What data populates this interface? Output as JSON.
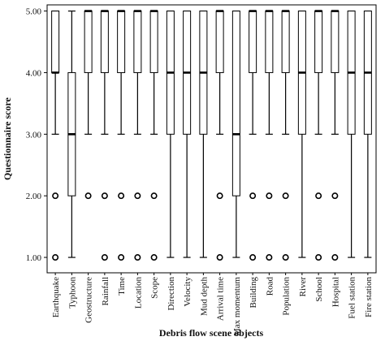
{
  "chart_data": {
    "type": "boxplot",
    "title": "",
    "xlabel": "Debris flow scene objects",
    "ylabel": "Questionnaire score",
    "ylim": [
      0.75,
      5.1
    ],
    "yticks": [
      "1.00",
      "2.00",
      "3.00",
      "4.00",
      "5.00"
    ],
    "ytick_values": [
      1,
      2,
      3,
      4,
      5
    ],
    "grid": false,
    "colors": {
      "box_fill": "#ffffff",
      "stroke": "#000000",
      "plot_bg": "#ffffff"
    },
    "categories": [
      "Earthquake",
      "Typhoon",
      "Geostructure",
      "Rainfall",
      "Time",
      "Location",
      "Scope",
      "Direction",
      "Velocity",
      "Mud depth",
      "Arrival time",
      "Max momentum",
      "Building",
      "Road",
      "Population",
      "River",
      "School",
      "Hospital",
      "Fuel station",
      "Fire station"
    ],
    "boxes": [
      {
        "category": "Earthquake",
        "whisker_low": 3,
        "q1": 4,
        "median": 4,
        "q3": 5,
        "whisker_high": 5,
        "outliers": [
          2,
          1
        ]
      },
      {
        "category": "Typhoon",
        "whisker_low": 1,
        "q1": 2,
        "median": 3,
        "q3": 4,
        "whisker_high": 5,
        "outliers": []
      },
      {
        "category": "Geostructure",
        "whisker_low": 3,
        "q1": 4,
        "median": 5,
        "q3": 5,
        "whisker_high": 5,
        "outliers": [
          2
        ]
      },
      {
        "category": "Rainfall",
        "whisker_low": 3,
        "q1": 4,
        "median": 5,
        "q3": 5,
        "whisker_high": 5,
        "outliers": [
          2,
          1
        ]
      },
      {
        "category": "Time",
        "whisker_low": 3,
        "q1": 4,
        "median": 5,
        "q3": 5,
        "whisker_high": 5,
        "outliers": [
          2,
          1
        ]
      },
      {
        "category": "Location",
        "whisker_low": 3,
        "q1": 4,
        "median": 5,
        "q3": 5,
        "whisker_high": 5,
        "outliers": [
          2,
          1
        ]
      },
      {
        "category": "Scope",
        "whisker_low": 3,
        "q1": 4,
        "median": 5,
        "q3": 5,
        "whisker_high": 5,
        "outliers": [
          2,
          1
        ]
      },
      {
        "category": "Direction",
        "whisker_low": 1,
        "q1": 3,
        "median": 4,
        "q3": 5,
        "whisker_high": 5,
        "outliers": []
      },
      {
        "category": "Velocity",
        "whisker_low": 1,
        "q1": 3,
        "median": 4,
        "q3": 5,
        "whisker_high": 5,
        "outliers": []
      },
      {
        "category": "Mud depth",
        "whisker_low": 1,
        "q1": 3,
        "median": 4,
        "q3": 5,
        "whisker_high": 5,
        "outliers": []
      },
      {
        "category": "Arrival time",
        "whisker_low": 3,
        "q1": 4,
        "median": 5,
        "q3": 5,
        "whisker_high": 5,
        "outliers": [
          2,
          1
        ]
      },
      {
        "category": "Max momentum",
        "whisker_low": 1,
        "q1": 2,
        "median": 3,
        "q3": 5,
        "whisker_high": 5,
        "outliers": []
      },
      {
        "category": "Building",
        "whisker_low": 3,
        "q1": 4,
        "median": 5,
        "q3": 5,
        "whisker_high": 5,
        "outliers": [
          2,
          1
        ]
      },
      {
        "category": "Road",
        "whisker_low": 3,
        "q1": 4,
        "median": 5,
        "q3": 5,
        "whisker_high": 5,
        "outliers": [
          2,
          1
        ]
      },
      {
        "category": "Population",
        "whisker_low": 3,
        "q1": 4,
        "median": 5,
        "q3": 5,
        "whisker_high": 5,
        "outliers": [
          2,
          1
        ]
      },
      {
        "category": "River",
        "whisker_low": 1,
        "q1": 3,
        "median": 4,
        "q3": 5,
        "whisker_high": 5,
        "outliers": []
      },
      {
        "category": "School",
        "whisker_low": 3,
        "q1": 4,
        "median": 5,
        "q3": 5,
        "whisker_high": 5,
        "outliers": [
          2,
          1
        ]
      },
      {
        "category": "Hospital",
        "whisker_low": 3,
        "q1": 4,
        "median": 5,
        "q3": 5,
        "whisker_high": 5,
        "outliers": [
          2,
          1
        ]
      },
      {
        "category": "Fuel station",
        "whisker_low": 1,
        "q1": 3,
        "median": 4,
        "q3": 5,
        "whisker_high": 5,
        "outliers": []
      },
      {
        "category": "Fire station",
        "whisker_low": 1,
        "q1": 3,
        "median": 4,
        "q3": 5,
        "whisker_high": 5,
        "outliers": []
      }
    ]
  }
}
